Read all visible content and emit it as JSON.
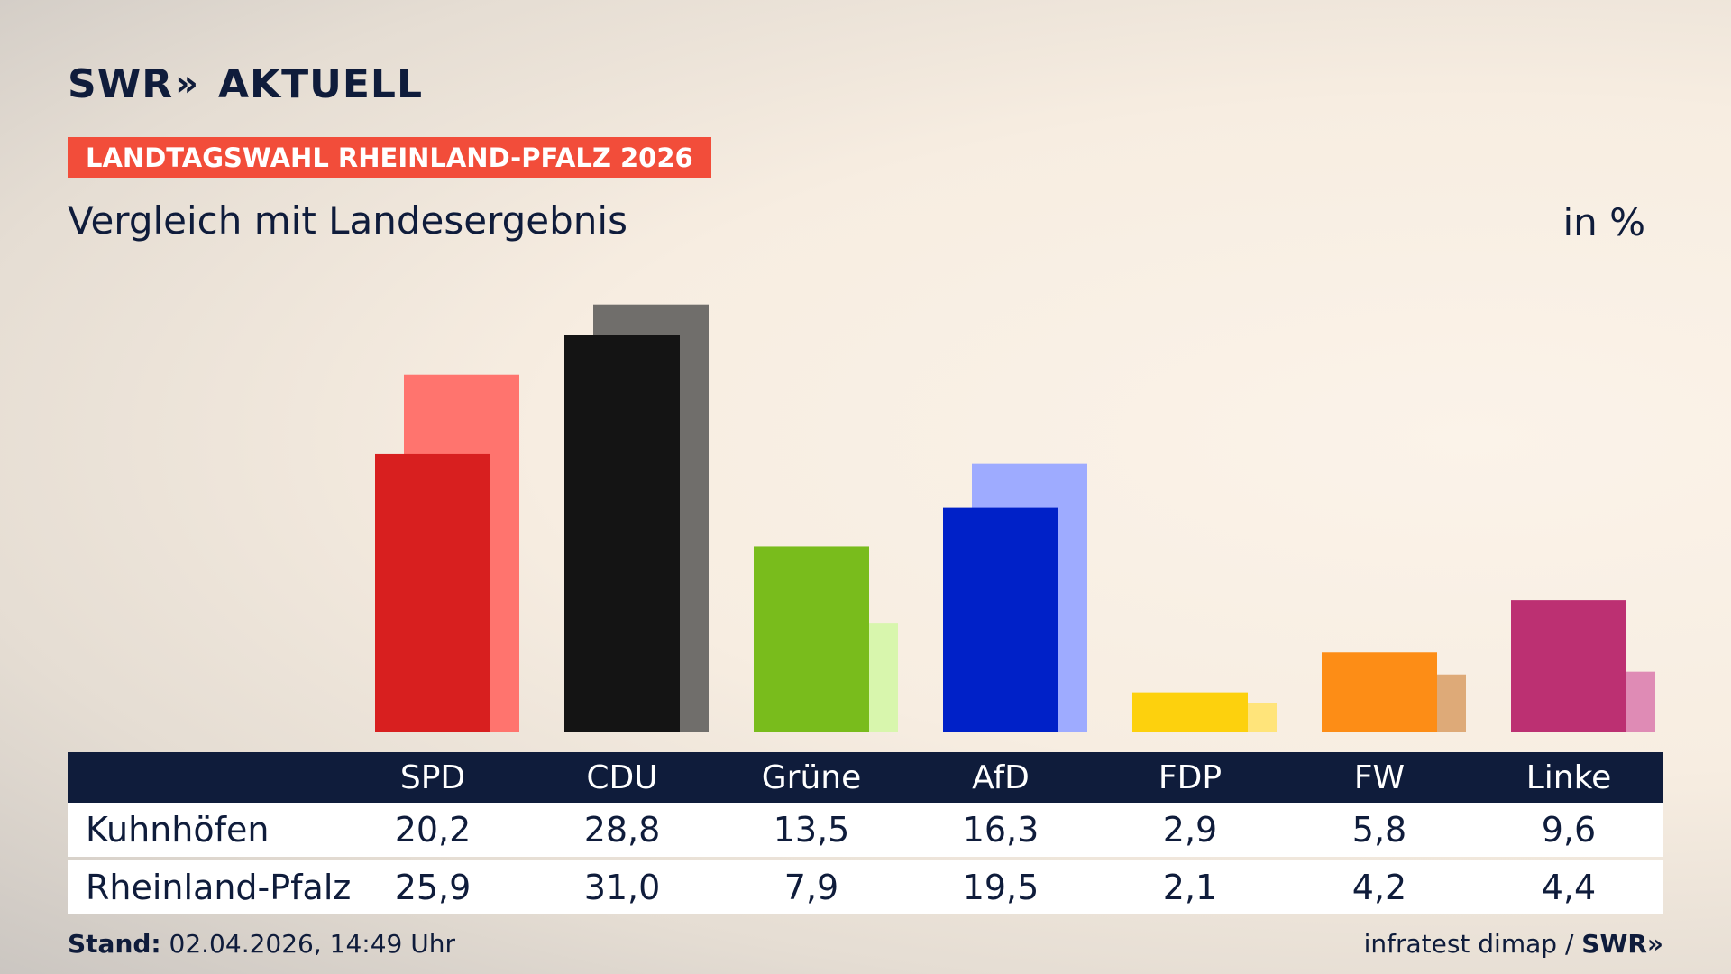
{
  "header": {
    "logo_swr": "SWR",
    "logo_arrows": "»",
    "logo_aktuell": "AKTUELL",
    "badge": "LANDTAGSWAHL RHEINLAND-PFALZ 2026",
    "subtitle": "Vergleich mit Landesergebnis",
    "unit": "in %"
  },
  "chart_data": {
    "type": "bar",
    "title": "Vergleich mit Landesergebnis",
    "ylabel": "in %",
    "grid": false,
    "categories": [
      "SPD",
      "CDU",
      "Grüne",
      "AfD",
      "FDP",
      "FW",
      "Linke"
    ],
    "series": [
      {
        "name": "Kuhnhöfen",
        "values": [
          20.2,
          28.8,
          13.5,
          16.3,
          2.9,
          5.8,
          9.6
        ],
        "labels": [
          "20,2",
          "28,8",
          "13,5",
          "16,3",
          "2,9",
          "5,8",
          "9,6"
        ]
      },
      {
        "name": "Rheinland-Pfalz",
        "values": [
          25.9,
          31.0,
          7.9,
          19.5,
          2.1,
          4.2,
          4.4
        ],
        "labels": [
          "25,9",
          "31,0",
          "7,9",
          "19,5",
          "2,1",
          "4,2",
          "4,4"
        ]
      }
    ],
    "colors": {
      "local": [
        "#d81f1f",
        "#141414",
        "#79bc1c",
        "#0021c8",
        "#fdd10d",
        "#fd8d16",
        "#bc3072"
      ],
      "state": [
        "#ff746e",
        "#706e6b",
        "#d8f6ad",
        "#9eabff",
        "#ffe47a",
        "#deaa78",
        "#df8bb5"
      ]
    }
  },
  "footer": {
    "stand_label": "Stand:",
    "stand_value": "02.04.2026, 14:49 Uhr",
    "source": "infratest dimap /",
    "source_logo": "SWR»"
  }
}
